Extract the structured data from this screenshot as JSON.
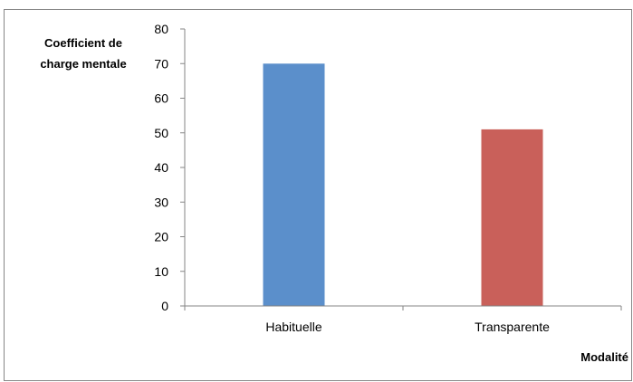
{
  "chart_data": {
    "type": "bar",
    "title": "",
    "ylabel_lines": [
      "Coefficient de",
      "charge mentale"
    ],
    "xlabel": "Modalité",
    "categories": [
      "Habituelle",
      "Transparente"
    ],
    "values": [
      70,
      51
    ],
    "colors": [
      "#5B8FCB",
      "#C9605A"
    ],
    "ylim": [
      0,
      80
    ],
    "yticks": [
      0,
      10,
      20,
      30,
      40,
      50,
      60,
      70,
      80
    ],
    "grid": false,
    "legend": "none"
  }
}
